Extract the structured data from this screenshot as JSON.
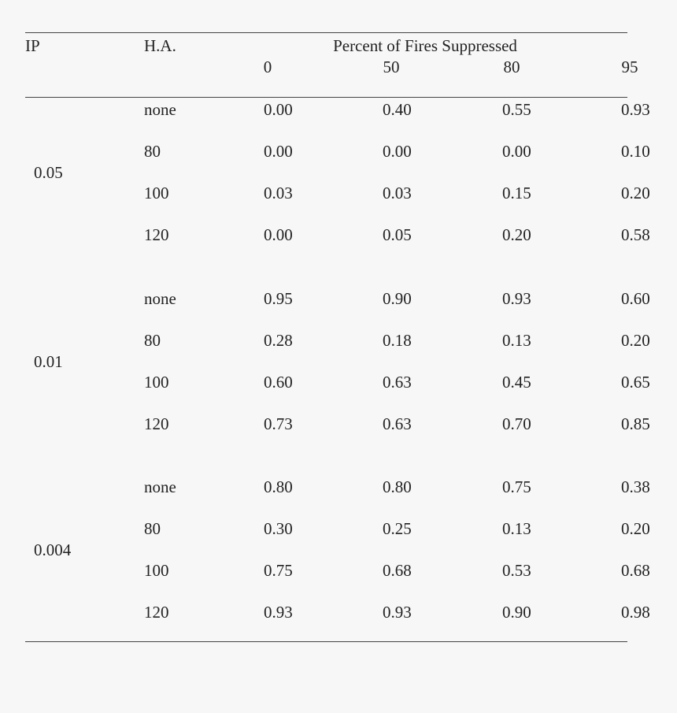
{
  "header": {
    "ip_label": "IP",
    "ha_label": "H.A.",
    "group_title": "Percent of Fires Suppressed",
    "percent_columns": [
      "0",
      "50",
      "80",
      "95"
    ]
  },
  "groups": [
    {
      "ip": "0.05",
      "rows": [
        {
          "ha": "none",
          "values": [
            "0.00",
            "0.40",
            "0.55",
            "0.93"
          ]
        },
        {
          "ha": "80",
          "values": [
            "0.00",
            "0.00",
            "0.00",
            "0.10"
          ]
        },
        {
          "ha": "100",
          "values": [
            "0.03",
            "0.03",
            "0.15",
            "0.20"
          ]
        },
        {
          "ha": "120",
          "values": [
            "0.00",
            "0.05",
            "0.20",
            "0.58"
          ]
        }
      ]
    },
    {
      "ip": "0.01",
      "rows": [
        {
          "ha": "none",
          "values": [
            "0.95",
            "0.90",
            "0.93",
            "0.60"
          ]
        },
        {
          "ha": "80",
          "values": [
            "0.28",
            "0.18",
            "0.13",
            "0.20"
          ]
        },
        {
          "ha": "100",
          "values": [
            "0.60",
            "0.63",
            "0.45",
            "0.65"
          ]
        },
        {
          "ha": "120",
          "values": [
            "0.73",
            "0.63",
            "0.70",
            "0.85"
          ]
        }
      ]
    },
    {
      "ip": "0.004",
      "rows": [
        {
          "ha": "none",
          "values": [
            "0.80",
            "0.80",
            "0.75",
            "0.38"
          ]
        },
        {
          "ha": "80",
          "values": [
            "0.30",
            "0.25",
            "0.13",
            "0.20"
          ]
        },
        {
          "ha": "100",
          "values": [
            "0.75",
            "0.68",
            "0.53",
            "0.68"
          ]
        },
        {
          "ha": "120",
          "values": [
            "0.93",
            "0.93",
            "0.90",
            "0.98"
          ]
        }
      ]
    }
  ]
}
